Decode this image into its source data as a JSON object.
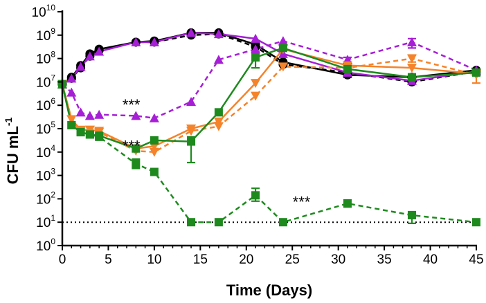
{
  "chart_data": {
    "type": "line",
    "title": "",
    "xlabel": "Time (Days)",
    "ylabel": "CFU mL",
    "ylabel_exp": "-1",
    "xlim": [
      0,
      45
    ],
    "ylim_log10": [
      0,
      10
    ],
    "y_scale": "log",
    "x_ticks": [
      0,
      5,
      10,
      15,
      20,
      25,
      30,
      35,
      40,
      45
    ],
    "y_ticks": [
      {
        "base": "10",
        "exp": "0"
      },
      {
        "base": "10",
        "exp": "1"
      },
      {
        "base": "10",
        "exp": "2"
      },
      {
        "base": "10",
        "exp": "3"
      },
      {
        "base": "10",
        "exp": "4"
      },
      {
        "base": "10",
        "exp": "5"
      },
      {
        "base": "10",
        "exp": "6"
      },
      {
        "base": "10",
        "exp": "7"
      },
      {
        "base": "10",
        "exp": "8"
      },
      {
        "base": "10",
        "exp": "9"
      },
      {
        "base": "10",
        "exp": "10"
      }
    ],
    "detection_limit_log10": 1,
    "annotations": [
      {
        "text": "***",
        "x": 7.5,
        "y_log10": 6.15
      },
      {
        "text": "***",
        "x": 7.5,
        "y_log10": 4.4
      },
      {
        "text": "***",
        "x": 26,
        "y_log10": 2.0
      }
    ],
    "series": [
      {
        "name": "black-solid",
        "color": "#000000",
        "marker": "circle",
        "dash": false,
        "points": [
          [
            0,
            6.9
          ],
          [
            1,
            7.2
          ],
          [
            2,
            7.7
          ],
          [
            3,
            8.2
          ],
          [
            4,
            8.4
          ],
          [
            8,
            8.7
          ],
          [
            10,
            8.75
          ],
          [
            14,
            9.1
          ],
          [
            17,
            9.1
          ],
          [
            21,
            8.6
          ],
          [
            24,
            7.85
          ],
          [
            31,
            7.3
          ],
          [
            38,
            7.2
          ],
          [
            45,
            7.5
          ]
        ]
      },
      {
        "name": "black-dashed",
        "color": "#000000",
        "marker": "circle",
        "dash": true,
        "points": [
          [
            0,
            6.9
          ],
          [
            1,
            7.15
          ],
          [
            2,
            7.6
          ],
          [
            3,
            8.1
          ],
          [
            4,
            8.35
          ],
          [
            8,
            8.7
          ],
          [
            10,
            8.7
          ],
          [
            14,
            9.0
          ],
          [
            17,
            9.05
          ],
          [
            21,
            8.5
          ],
          [
            24,
            7.75
          ],
          [
            31,
            7.4
          ],
          [
            38,
            7.0
          ],
          [
            45,
            7.45
          ]
        ]
      },
      {
        "name": "purple-solid",
        "color": "#a61fd6",
        "marker": "triangle-up",
        "dash": false,
        "points": [
          [
            0,
            6.9
          ],
          [
            1,
            7.15
          ],
          [
            2,
            7.65
          ],
          [
            3,
            8.1
          ],
          [
            4,
            8.3
          ],
          [
            8,
            8.7
          ],
          [
            10,
            8.7
          ],
          [
            14,
            9.1
          ],
          [
            17,
            9.05
          ],
          [
            21,
            8.85
          ],
          [
            24,
            8.2
          ],
          [
            31,
            7.4
          ],
          [
            38,
            7.05
          ],
          [
            45,
            7.45
          ]
        ]
      },
      {
        "name": "purple-dashed",
        "color": "#a61fd6",
        "marker": "triangle-up",
        "dash": true,
        "points": [
          [
            0,
            6.9
          ],
          [
            1,
            6.55
          ],
          [
            2,
            5.7
          ],
          [
            3,
            5.55
          ],
          [
            4,
            5.6
          ],
          [
            8,
            5.55
          ],
          [
            10,
            5.45
          ],
          [
            14,
            6.15
          ],
          [
            17,
            7.95
          ],
          [
            21,
            8.4
          ],
          [
            24,
            8.75
          ],
          [
            31,
            7.95
          ],
          [
            38,
            8.7
          ],
          [
            45,
            7.5
          ]
        ]
      },
      {
        "name": "orange-solid",
        "color": "#f5832a",
        "marker": "triangle-down",
        "dash": false,
        "points": [
          [
            0,
            6.9
          ],
          [
            1,
            5.4
          ],
          [
            2,
            4.95
          ],
          [
            3,
            4.95
          ],
          [
            4,
            4.9
          ],
          [
            8,
            4.15
          ],
          [
            10,
            4.25
          ],
          [
            14,
            5.0
          ],
          [
            17,
            5.3
          ],
          [
            21,
            6.95
          ],
          [
            24,
            8.4
          ],
          [
            31,
            7.7
          ],
          [
            38,
            7.6
          ],
          [
            45,
            7.35
          ]
        ]
      },
      {
        "name": "orange-dashed",
        "color": "#f5832a",
        "marker": "triangle-down",
        "dash": true,
        "points": [
          [
            0,
            6.9
          ],
          [
            1,
            5.4
          ],
          [
            2,
            4.9
          ],
          [
            3,
            4.95
          ],
          [
            4,
            4.85
          ],
          [
            8,
            4.05
          ],
          [
            10,
            4.0
          ],
          [
            14,
            4.9
          ],
          [
            17,
            5.1
          ],
          [
            21,
            6.4
          ],
          [
            24,
            7.65
          ],
          [
            31,
            7.6
          ],
          [
            38,
            8.0
          ],
          [
            45,
            7.3
          ]
        ]
      },
      {
        "name": "green-solid",
        "color": "#1e8a1e",
        "marker": "square",
        "dash": false,
        "points": [
          [
            0,
            6.9
          ],
          [
            1,
            5.15
          ],
          [
            2,
            4.85
          ],
          [
            3,
            4.75
          ],
          [
            4,
            4.7
          ],
          [
            8,
            4.15
          ],
          [
            10,
            4.5
          ],
          [
            14,
            4.45
          ],
          [
            17,
            5.7
          ],
          [
            21,
            8.05
          ],
          [
            24,
            8.45
          ],
          [
            31,
            7.55
          ],
          [
            38,
            7.2
          ],
          [
            45,
            7.4
          ]
        ]
      },
      {
        "name": "green-dashed",
        "color": "#1e8a1e",
        "marker": "square",
        "dash": true,
        "points": [
          [
            0,
            6.9
          ],
          [
            1,
            5.15
          ],
          [
            2,
            4.85
          ],
          [
            3,
            4.75
          ],
          [
            4,
            4.65
          ],
          [
            8,
            3.5
          ],
          [
            10,
            3.15
          ],
          [
            14,
            1.0
          ],
          [
            17,
            1.0
          ],
          [
            21,
            2.15
          ],
          [
            24,
            1.0
          ],
          [
            31,
            1.8
          ],
          [
            38,
            1.3
          ],
          [
            45,
            1.0
          ]
        ]
      }
    ],
    "error_bars": [
      {
        "series": "green-solid",
        "x": 21,
        "lo": 7.6,
        "hi": 8.3
      },
      {
        "series": "green-solid",
        "x": 14,
        "lo": 3.55,
        "hi": 4.65
      },
      {
        "series": "green-dashed",
        "x": 8,
        "lo": 3.3,
        "hi": 3.7
      },
      {
        "series": "green-dashed",
        "x": 21,
        "lo": 1.9,
        "hi": 2.45
      },
      {
        "series": "green-dashed",
        "x": 31,
        "lo": 1.65,
        "hi": 1.95
      },
      {
        "series": "green-dashed",
        "x": 38,
        "lo": 0.95,
        "hi": 1.45
      },
      {
        "series": "purple-dashed",
        "x": 38,
        "lo": 8.45,
        "hi": 8.85
      },
      {
        "series": "purple-dashed",
        "x": 31,
        "lo": 7.85,
        "hi": 8.05
      },
      {
        "series": "orange-solid",
        "x": 45,
        "lo": 6.95,
        "hi": 7.5
      },
      {
        "series": "orange-dashed",
        "x": 38,
        "lo": 7.85,
        "hi": 8.15
      },
      {
        "series": "black-solid",
        "x": 31,
        "lo": 7.2,
        "hi": 7.4
      },
      {
        "series": "black-solid",
        "x": 38,
        "lo": 7.05,
        "hi": 7.3
      }
    ]
  }
}
